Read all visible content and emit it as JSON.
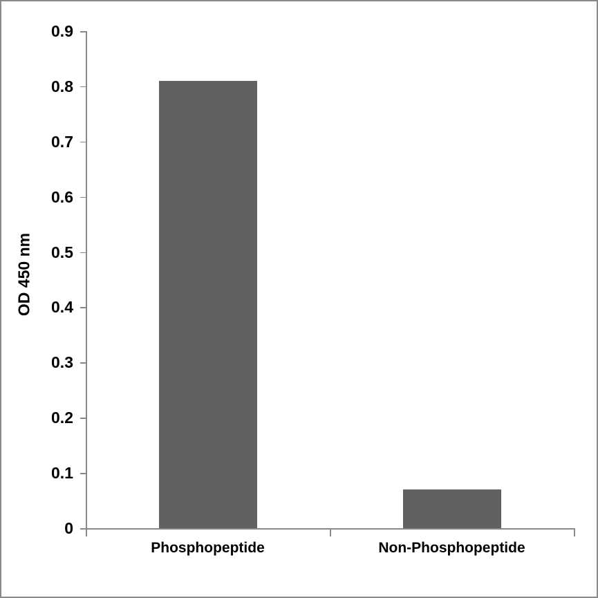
{
  "chart_data": {
    "type": "bar",
    "categories": [
      "Phosphopeptide",
      "Non-Phosphopeptide"
    ],
    "values": [
      0.81,
      0.07
    ],
    "title": "",
    "xlabel": "",
    "ylabel": "OD 450 nm",
    "ylim": [
      0,
      0.9
    ],
    "ytick_step": 0.1,
    "ytick_labels": [
      "0",
      "0.1",
      "0.2",
      "0.3",
      "0.4",
      "0.5",
      "0.6",
      "0.7",
      "0.8",
      "0.9"
    ],
    "grid": false,
    "legend": false,
    "colors": {
      "bar_fill": "#616161",
      "axis_line": "#898989",
      "text": "#000000",
      "background": "#ffffff",
      "figure_border": "#8a8a8a"
    }
  }
}
